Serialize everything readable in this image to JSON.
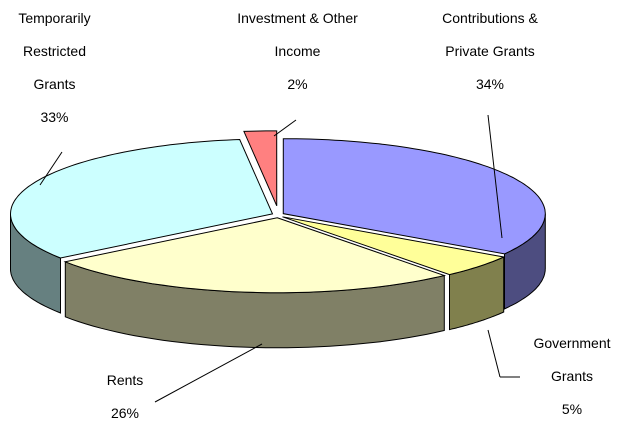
{
  "chart_data": {
    "type": "pie3d",
    "categories": [
      "Contributions & Private Grants",
      "Government Grants",
      "Rents",
      "Temporarily Restricted Grants",
      "Investment & Other Income"
    ],
    "values": [
      34,
      5,
      26,
      33,
      2
    ],
    "value_labels": [
      "34%",
      "5%",
      "26%",
      "33%",
      "2%"
    ],
    "colors": [
      "#9999ff",
      "#ffff99",
      "#ffffcc",
      "#ccffff",
      "#ff8080"
    ]
  }
}
